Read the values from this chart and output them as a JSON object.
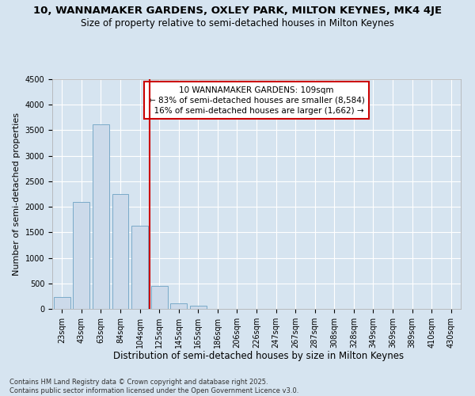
{
  "title1": "10, WANNAMAKER GARDENS, OXLEY PARK, MILTON KEYNES, MK4 4JE",
  "title2": "Size of property relative to semi-detached houses in Milton Keynes",
  "xlabel": "Distribution of semi-detached houses by size in Milton Keynes",
  "ylabel": "Number of semi-detached properties",
  "footnote": "Contains HM Land Registry data © Crown copyright and database right 2025.\nContains public sector information licensed under the Open Government Licence v3.0.",
  "bar_labels": [
    "23sqm",
    "43sqm",
    "63sqm",
    "84sqm",
    "104sqm",
    "125sqm",
    "145sqm",
    "165sqm",
    "186sqm",
    "206sqm",
    "226sqm",
    "247sqm",
    "267sqm",
    "287sqm",
    "308sqm",
    "328sqm",
    "349sqm",
    "369sqm",
    "389sqm",
    "410sqm",
    "430sqm"
  ],
  "bar_values": [
    240,
    2100,
    3620,
    2250,
    1630,
    450,
    110,
    60,
    0,
    0,
    0,
    0,
    0,
    0,
    0,
    0,
    0,
    0,
    0,
    0,
    0
  ],
  "bar_color": "#ccdaea",
  "bar_edgecolor": "#7aaac8",
  "vline_pos": 4.5,
  "vline_label": "10 WANNAMAKER GARDENS: 109sqm",
  "vline_pct_smaller": "83% of semi-detached houses are smaller (8,584)",
  "vline_pct_larger": "16% of semi-detached houses are larger (1,662)",
  "vline_color": "#cc0000",
  "annotation_box_color": "#cc0000",
  "ylim": [
    0,
    4500
  ],
  "yticks": [
    0,
    500,
    1000,
    1500,
    2000,
    2500,
    3000,
    3500,
    4000,
    4500
  ],
  "background_color": "#d6e4f0",
  "plot_background": "#d6e4f0",
  "grid_color": "#ffffff",
  "title1_fontsize": 9.5,
  "title2_fontsize": 8.5,
  "xlabel_fontsize": 8.5,
  "ylabel_fontsize": 8,
  "tick_fontsize": 7,
  "annot_fontsize": 7.5,
  "footnote_fontsize": 6
}
